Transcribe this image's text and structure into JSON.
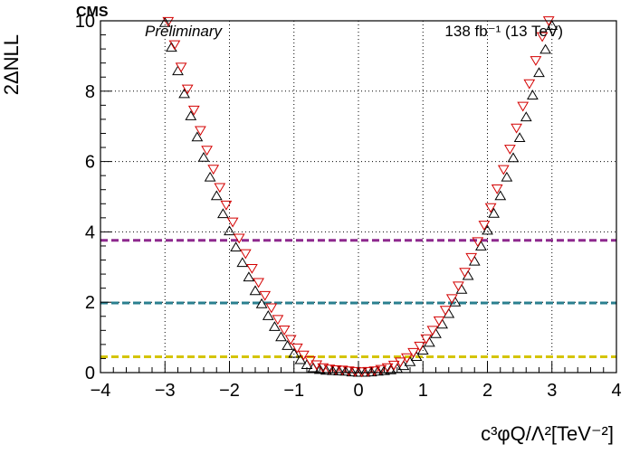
{
  "chart_data": {
    "type": "scatter",
    "title": "",
    "experiment": "CMS",
    "status": "Preliminary",
    "lumi_text": "138 fb⁻¹ (13 TeV)",
    "xlabel": "c³φQ/Λ²[TeV⁻²]",
    "ylabel": "2ΔNLL",
    "xlim": [
      -4,
      4
    ],
    "ylim": [
      0,
      10
    ],
    "x_ticks": [
      -4,
      -3,
      -2,
      -1,
      0,
      1,
      2,
      3,
      4
    ],
    "y_ticks": [
      0,
      2,
      4,
      6,
      8,
      10
    ],
    "grid": true,
    "series": [
      {
        "marker": "open-triangle-up",
        "color": "#000000",
        "x": [
          -3.0,
          -2.9,
          -2.8,
          -2.7,
          -2.6,
          -2.5,
          -2.4,
          -2.3,
          -2.2,
          -2.1,
          -2.0,
          -1.9,
          -1.8,
          -1.7,
          -1.6,
          -1.5,
          -1.4,
          -1.3,
          -1.2,
          -1.1,
          -1.0,
          -0.9,
          -0.8,
          -0.7,
          -0.6,
          -0.5,
          -0.4,
          -0.3,
          -0.2,
          -0.1,
          0.0,
          0.1,
          0.2,
          0.3,
          0.4,
          0.5,
          0.6,
          0.7,
          0.8,
          0.9,
          1.0,
          1.1,
          1.2,
          1.3,
          1.4,
          1.5,
          1.6,
          1.7,
          1.8,
          1.9,
          2.0,
          2.1,
          2.2,
          2.3,
          2.4,
          2.5,
          2.6,
          2.7,
          2.8,
          2.9,
          3.0
        ],
        "y": [
          9.95,
          9.25,
          8.58,
          7.93,
          7.3,
          6.7,
          6.12,
          5.56,
          5.03,
          4.52,
          4.03,
          3.57,
          3.13,
          2.72,
          2.33,
          1.96,
          1.62,
          1.31,
          1.02,
          0.77,
          0.55,
          0.37,
          0.23,
          0.14,
          0.09,
          0.07,
          0.06,
          0.05,
          0.04,
          0.02,
          0.01,
          0.01,
          0.02,
          0.04,
          0.06,
          0.08,
          0.12,
          0.2,
          0.31,
          0.46,
          0.64,
          0.86,
          1.11,
          1.38,
          1.68,
          2.01,
          2.37,
          2.76,
          3.17,
          3.6,
          4.05,
          4.53,
          5.03,
          5.56,
          6.11,
          6.68,
          7.27,
          7.89,
          8.53,
          9.19,
          9.87
        ]
      },
      {
        "marker": "open-triangle-down",
        "color": "#d40000",
        "x": [
          -2.95,
          -2.85,
          -2.75,
          -2.65,
          -2.55,
          -2.45,
          -2.35,
          -2.25,
          -2.15,
          -2.05,
          -1.95,
          -1.85,
          -1.75,
          -1.65,
          -1.55,
          -1.45,
          -1.35,
          -1.25,
          -1.15,
          -1.05,
          -0.95,
          -0.85,
          -0.75,
          -0.65,
          -0.55,
          -0.45,
          -0.35,
          -0.25,
          -0.15,
          -0.05,
          0.05,
          0.15,
          0.25,
          0.35,
          0.45,
          0.55,
          0.65,
          0.75,
          0.85,
          0.95,
          1.05,
          1.15,
          1.25,
          1.35,
          1.45,
          1.55,
          1.65,
          1.75,
          1.85,
          1.95,
          2.05,
          2.15,
          2.25,
          2.35,
          2.45,
          2.55,
          2.65,
          2.75,
          2.85,
          2.95
        ],
        "y": [
          9.98,
          9.32,
          8.68,
          8.06,
          7.46,
          6.88,
          6.32,
          5.78,
          5.26,
          4.76,
          4.28,
          3.82,
          3.38,
          2.96,
          2.56,
          2.19,
          1.84,
          1.51,
          1.21,
          0.94,
          0.7,
          0.5,
          0.34,
          0.22,
          0.14,
          0.1,
          0.08,
          0.07,
          0.05,
          0.03,
          0.02,
          0.03,
          0.05,
          0.09,
          0.14,
          0.21,
          0.3,
          0.42,
          0.57,
          0.75,
          0.96,
          1.2,
          1.47,
          1.77,
          2.1,
          2.46,
          2.85,
          3.27,
          3.72,
          4.19,
          4.69,
          5.22,
          5.77,
          6.35,
          6.95,
          7.57,
          8.21,
          8.87,
          9.55,
          10.0
        ]
      }
    ],
    "reference_lines": [
      {
        "y": 0.45,
        "color": "#d4c400",
        "style": "dashed"
      },
      {
        "y": 1.98,
        "color": "#2a7f8f",
        "style": "dashed"
      },
      {
        "y": 3.76,
        "color": "#8e2a8e",
        "style": "dashed"
      }
    ]
  }
}
